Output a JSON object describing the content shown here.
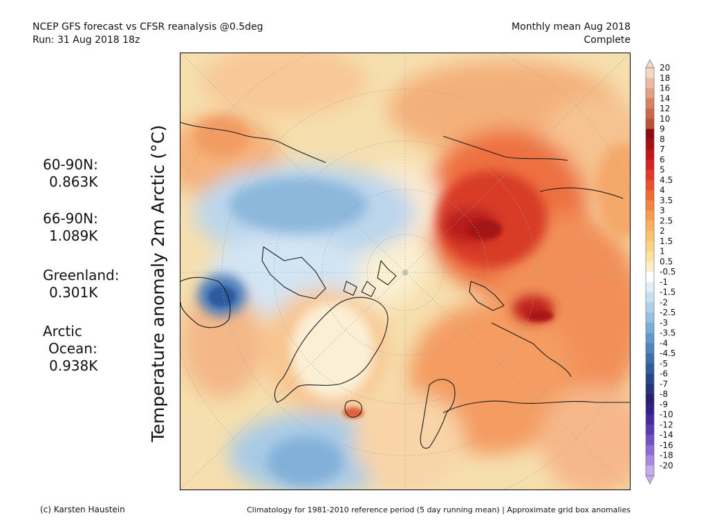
{
  "header": {
    "title_line1": "NCEP GFS forecast vs CFSR reanalysis @0.5deg",
    "title_line2": "Run: 31 Aug 2018 18z",
    "right_line1": "Monthly mean Aug 2018",
    "right_line2": "Complete"
  },
  "y_axis_label": "Temperature anomaly 2m Arctic (°C)",
  "stats": [
    {
      "label": "60-90N:",
      "value": "0.863K"
    },
    {
      "label": "66-90N:",
      "value": "1.089K"
    },
    {
      "label": "Greenland:",
      "value": "0.301K"
    },
    {
      "label_line1": "Arctic",
      "label_line2": "Ocean:",
      "value": "0.938K"
    }
  ],
  "colorbar": {
    "labels": [
      "20",
      "18",
      "16",
      "14",
      "12",
      "10",
      "9",
      "8",
      "7",
      "6",
      "5",
      "4.5",
      "4",
      "3.5",
      "3",
      "2.5",
      "2",
      "1.5",
      "1",
      "0.5",
      "-0.5",
      "-1",
      "-1.5",
      "-2",
      "-2.5",
      "-3",
      "-3.5",
      "-4",
      "-4.5",
      "-5",
      "-6",
      "-7",
      "-8",
      "-9",
      "-10",
      "-12",
      "-14",
      "-16",
      "-18",
      "-20"
    ],
    "colors": [
      "#f7d6c8",
      "#eeb9a0",
      "#e49e80",
      "#d88262",
      "#c9694a",
      "#b85434",
      "#8e0a12",
      "#a51010",
      "#c01717",
      "#d52424",
      "#e23a2a",
      "#ea4f2f",
      "#f06a36",
      "#f48540",
      "#f79c4c",
      "#f9b15c",
      "#fbc36e",
      "#fcd384",
      "#fde3a1",
      "#fdf0c9",
      "#ffffff",
      "#e3eef8",
      "#c9e0f1",
      "#b1d1ea",
      "#96c0e1",
      "#7badd6",
      "#6399ca",
      "#4e85bc",
      "#3e70ac",
      "#305c9c",
      "#26478c",
      "#24337c",
      "#281f70",
      "#34208a",
      "#452aa0",
      "#5a3db3",
      "#7353c4",
      "#8d6dd2",
      "#a98ade",
      "#c5aceb"
    ]
  },
  "footer": {
    "left": "(c) Karsten Haustein",
    "right": "Climatology for 1981-2010 reference period (5 day running mean) | Approximate grid box anomalies"
  }
}
